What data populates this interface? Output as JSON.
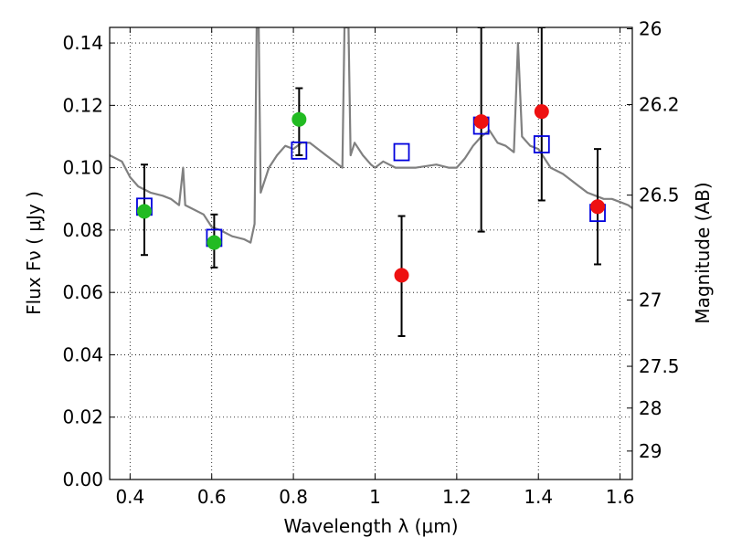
{
  "chart_data": {
    "type": "scatter",
    "xlabel": "Wavelength  λ (μm)",
    "ylabel": "Flux  Fν  ( μJy )",
    "ylabel_right": "Magnitude (AB)",
    "xlim": [
      0.35,
      1.63
    ],
    "ylim": [
      0.0,
      0.145
    ],
    "grid": true,
    "x_ticks": [
      {
        "value": 0.4,
        "label": "0.4"
      },
      {
        "value": 0.6,
        "label": "0.6"
      },
      {
        "value": 0.8,
        "label": "0.8"
      },
      {
        "value": 1.0,
        "label": "1"
      },
      {
        "value": 1.2,
        "label": "1.2"
      },
      {
        "value": 1.4,
        "label": "1.4"
      },
      {
        "value": 1.6,
        "label": "1.6"
      }
    ],
    "y_ticks": [
      {
        "value": 0.0,
        "label": "0.00"
      },
      {
        "value": 0.02,
        "label": "0.02"
      },
      {
        "value": 0.04,
        "label": "0.04"
      },
      {
        "value": 0.06,
        "label": "0.06"
      },
      {
        "value": 0.08,
        "label": "0.08"
      },
      {
        "value": 0.1,
        "label": "0.10"
      },
      {
        "value": 0.12,
        "label": "0.12"
      },
      {
        "value": 0.14,
        "label": "0.14"
      }
    ],
    "right_ticks": [
      {
        "mag": 26.0,
        "label": "26"
      },
      {
        "mag": 26.2,
        "label": "26.2"
      },
      {
        "mag": 26.5,
        "label": "26.5"
      },
      {
        "mag": 27.0,
        "label": "27"
      },
      {
        "mag": 27.5,
        "label": "27.5"
      },
      {
        "mag": 28.0,
        "label": "28"
      },
      {
        "mag": 29.0,
        "label": "29"
      }
    ],
    "series": [
      {
        "marker": "circle",
        "color": "#22bb22",
        "points": [
          {
            "x": 0.435,
            "y": 0.086,
            "ylo": 0.072,
            "yhi": 0.101
          },
          {
            "x": 0.606,
            "y": 0.076,
            "ylo": 0.068,
            "yhi": 0.085
          },
          {
            "x": 0.814,
            "y": 0.1155,
            "ylo": 0.104,
            "yhi": 0.1255
          }
        ]
      },
      {
        "marker": "circle",
        "color": "#ee1111",
        "points": [
          {
            "x": 1.065,
            "y": 0.0655,
            "ylo": 0.046,
            "yhi": 0.0845
          },
          {
            "x": 1.26,
            "y": 0.1148,
            "ylo": 0.0795,
            "yhi": 0.145
          },
          {
            "x": 1.408,
            "y": 0.118,
            "ylo": 0.0895,
            "yhi": 0.145
          },
          {
            "x": 1.545,
            "y": 0.0875,
            "ylo": 0.069,
            "yhi": 0.106
          }
        ]
      },
      {
        "marker": "square",
        "color": "#0000dd",
        "points": [
          {
            "x": 0.435,
            "y": 0.0875
          },
          {
            "x": 0.606,
            "y": 0.0775
          },
          {
            "x": 0.814,
            "y": 0.1055
          },
          {
            "x": 1.065,
            "y": 0.105
          },
          {
            "x": 1.26,
            "y": 0.1135
          },
          {
            "x": 1.408,
            "y": 0.1075
          },
          {
            "x": 1.545,
            "y": 0.0855
          }
        ]
      }
    ],
    "model_spectrum": {
      "color": "#808080",
      "x": [
        0.35,
        0.38,
        0.4,
        0.42,
        0.45,
        0.48,
        0.5,
        0.52,
        0.53,
        0.535,
        0.55,
        0.58,
        0.6,
        0.62,
        0.65,
        0.68,
        0.695,
        0.705,
        0.71,
        0.715,
        0.72,
        0.73,
        0.74,
        0.76,
        0.78,
        0.8,
        0.82,
        0.84,
        0.86,
        0.88,
        0.9,
        0.92,
        0.925,
        0.93,
        0.935,
        0.94,
        0.95,
        0.97,
        0.99,
        1.0,
        1.02,
        1.05,
        1.08,
        1.1,
        1.15,
        1.18,
        1.2,
        1.22,
        1.24,
        1.26,
        1.28,
        1.3,
        1.32,
        1.34,
        1.35,
        1.36,
        1.38,
        1.4,
        1.43,
        1.46,
        1.5,
        1.52,
        1.54,
        1.56,
        1.58,
        1.6,
        1.62,
        1.63
      ],
      "y": [
        0.104,
        0.102,
        0.097,
        0.094,
        0.092,
        0.091,
        0.09,
        0.088,
        0.1,
        0.088,
        0.087,
        0.085,
        0.081,
        0.08,
        0.078,
        0.077,
        0.076,
        0.082,
        0.145,
        0.145,
        0.092,
        0.096,
        0.1,
        0.104,
        0.107,
        0.106,
        0.108,
        0.108,
        0.106,
        0.104,
        0.102,
        0.1,
        0.145,
        0.145,
        0.145,
        0.104,
        0.108,
        0.104,
        0.101,
        0.1,
        0.102,
        0.1,
        0.1,
        0.1,
        0.101,
        0.1,
        0.1,
        0.103,
        0.107,
        0.11,
        0.112,
        0.108,
        0.107,
        0.105,
        0.14,
        0.11,
        0.107,
        0.106,
        0.1,
        0.098,
        0.094,
        0.092,
        0.091,
        0.09,
        0.09,
        0.089,
        0.088,
        0.087
      ]
    }
  }
}
